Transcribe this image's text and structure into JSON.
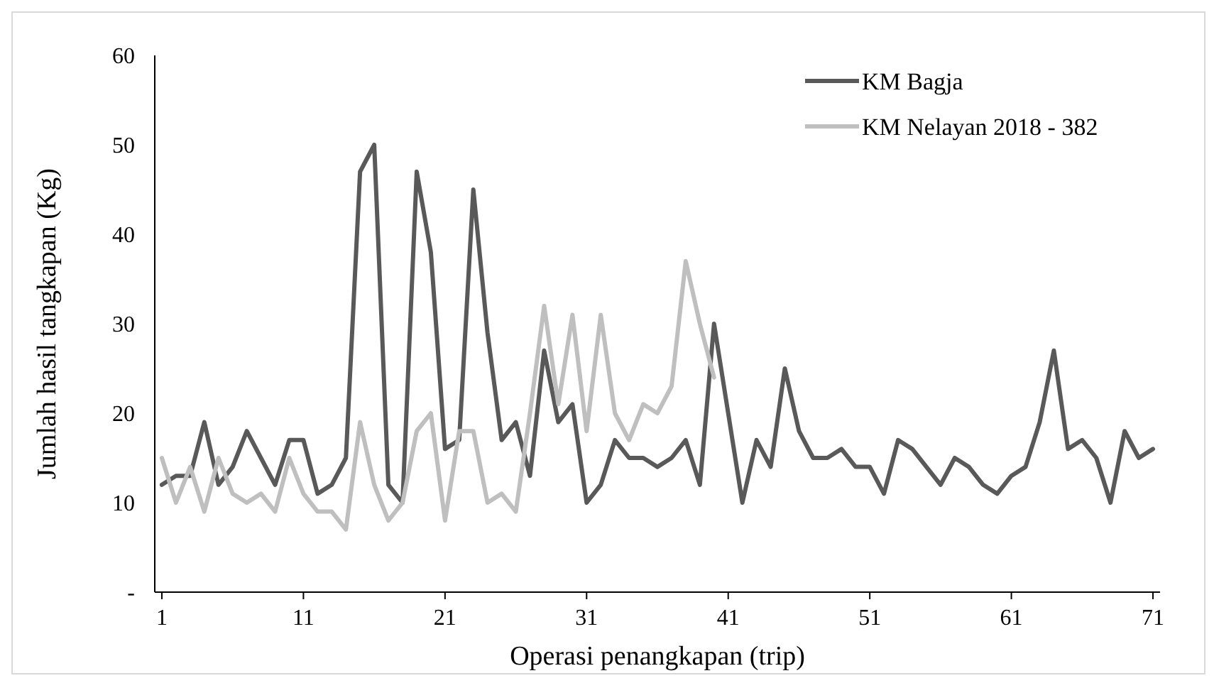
{
  "chart_data": {
    "type": "line",
    "xlabel": "Operasi penangkapan (trip)",
    "ylabel": "Jumlah hasil tangkapan (Kg)",
    "x": [
      1,
      2,
      3,
      4,
      5,
      6,
      7,
      8,
      9,
      10,
      11,
      12,
      13,
      14,
      15,
      16,
      17,
      18,
      19,
      20,
      21,
      22,
      23,
      24,
      25,
      26,
      27,
      28,
      29,
      30,
      31,
      32,
      33,
      34,
      35,
      36,
      37,
      38,
      39,
      40,
      41,
      42,
      43,
      44,
      45,
      46,
      47,
      48,
      49,
      50,
      51,
      52,
      53,
      54,
      55,
      56,
      57,
      58,
      59,
      60,
      61,
      62,
      63,
      64,
      65,
      66,
      67,
      68,
      69,
      70,
      71
    ],
    "series": [
      {
        "name": "KM Bagja",
        "color": "#595959",
        "values": [
          12,
          13,
          13,
          19,
          12,
          14,
          18,
          15,
          12,
          17,
          17,
          11,
          12,
          15,
          47,
          50,
          12,
          10,
          47,
          38,
          16,
          17,
          45,
          29,
          17,
          19,
          13,
          27,
          19,
          21,
          10,
          12,
          17,
          15,
          15,
          14,
          15,
          17,
          12,
          30,
          20,
          10,
          17,
          14,
          25,
          18,
          15,
          15,
          16,
          14,
          14,
          11,
          17,
          16,
          14,
          12,
          15,
          14,
          12,
          11,
          13,
          14,
          19,
          27,
          16,
          17,
          15,
          10,
          18,
          15,
          16
        ]
      },
      {
        "name": "KM Nelayan 2018 - 382",
        "color": "#bfbfbf",
        "values": [
          15,
          10,
          14,
          9,
          15,
          11,
          10,
          11,
          9,
          15,
          11,
          9,
          9,
          7,
          19,
          12,
          8,
          10,
          18,
          20,
          8,
          18,
          18,
          10,
          11,
          9,
          20,
          32,
          21,
          31,
          18,
          31,
          20,
          17,
          21,
          20,
          23,
          37,
          30,
          24,
          null,
          null,
          null,
          null,
          null,
          null,
          null,
          null,
          null,
          null,
          null,
          null,
          null,
          null,
          null,
          null,
          null,
          null,
          null,
          null,
          null,
          null,
          null,
          null,
          null,
          null,
          null,
          null,
          null,
          null,
          null
        ]
      }
    ],
    "xlim": [
      0.5,
      71.5
    ],
    "xticks": [
      1,
      11,
      21,
      31,
      41,
      51,
      61,
      71
    ],
    "ylim": [
      0,
      60
    ],
    "yticks": [
      {
        "value": 0,
        "label": "-"
      },
      10,
      20,
      30,
      40,
      50,
      60
    ],
    "grid": false,
    "legend": "top right",
    "marker": "none",
    "line_style": "solid"
  }
}
